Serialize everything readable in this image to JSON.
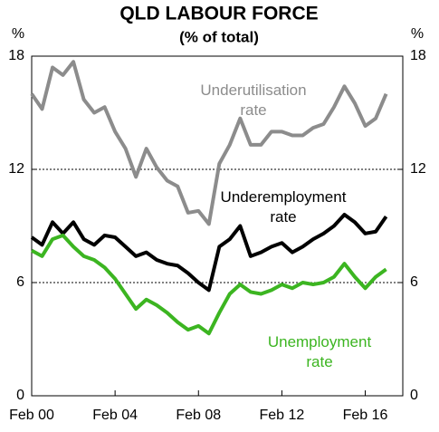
{
  "chart_data": {
    "type": "line",
    "title": "QLD LABOUR FORCE",
    "subtitle": "(% of total)",
    "y_unit": "%",
    "x": [
      2000,
      2000.5,
      2001,
      2001.5,
      2002,
      2002.5,
      2003,
      2003.5,
      2004,
      2004.5,
      2005,
      2005.5,
      2006,
      2006.5,
      2007,
      2007.5,
      2008,
      2008.5,
      2009,
      2009.5,
      2010,
      2010.5,
      2011,
      2011.5,
      2012,
      2012.5,
      2013,
      2013.5,
      2014,
      2014.5,
      2015,
      2015.5,
      2016,
      2016.5,
      2017
    ],
    "series": [
      {
        "name": "Underutilisation rate",
        "color": "#8c8c8c",
        "values": [
          16.0,
          15.2,
          17.4,
          17.0,
          17.7,
          15.7,
          15.0,
          15.3,
          14.0,
          13.1,
          11.6,
          13.1,
          12.1,
          11.4,
          11.1,
          9.7,
          9.8,
          9.1,
          12.3,
          13.3,
          14.7,
          13.3,
          13.3,
          14.0,
          14.0,
          13.8,
          13.8,
          14.2,
          14.4,
          15.3,
          16.4,
          15.5,
          14.3,
          14.7,
          16.0
        ]
      },
      {
        "name": "Underemployment rate",
        "color": "#000000",
        "values": [
          8.4,
          8.0,
          9.2,
          8.6,
          9.2,
          8.3,
          8.0,
          8.5,
          8.4,
          7.9,
          7.4,
          7.6,
          7.2,
          7.0,
          6.9,
          6.5,
          6.0,
          5.6,
          7.9,
          8.3,
          9.0,
          7.4,
          7.6,
          7.9,
          8.1,
          7.6,
          7.9,
          8.3,
          8.6,
          9.0,
          9.6,
          9.2,
          8.6,
          8.7,
          9.5
        ]
      },
      {
        "name": "Unemployment rate",
        "color": "#3cb521",
        "values": [
          7.7,
          7.4,
          8.3,
          8.5,
          7.9,
          7.4,
          7.2,
          6.8,
          6.2,
          5.4,
          4.6,
          5.1,
          4.8,
          4.4,
          3.9,
          3.5,
          3.7,
          3.3,
          4.4,
          5.4,
          5.9,
          5.5,
          5.4,
          5.6,
          5.9,
          5.7,
          6.0,
          5.9,
          6.0,
          6.3,
          7.0,
          6.3,
          5.7,
          6.3,
          6.7
        ]
      }
    ],
    "xlim": [
      2000,
      2017.8
    ],
    "xticks": [
      {
        "value": 2000,
        "label": "Feb 00"
      },
      {
        "value": 2004,
        "label": "Feb 04"
      },
      {
        "value": 2008,
        "label": "Feb 08"
      },
      {
        "value": 2012,
        "label": "Feb 12"
      },
      {
        "value": 2016,
        "label": "Feb 16"
      }
    ],
    "ylim": [
      0,
      18
    ],
    "yticks": [
      0,
      6,
      12,
      18
    ],
    "grid": true
  }
}
